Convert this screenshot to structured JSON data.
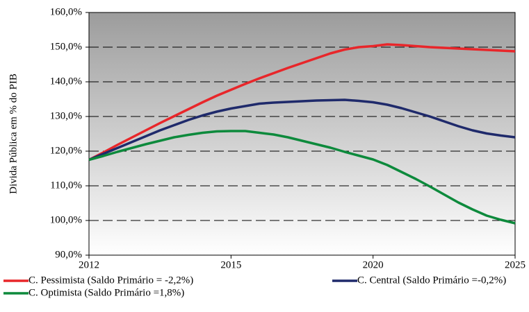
{
  "chart_data": {
    "type": "line",
    "y_label": "Divida Pública em % do PIB",
    "categories": [
      "2012",
      null,
      null,
      null,
      null,
      null,
      null,
      null,
      null,
      null,
      "2015",
      null,
      null,
      null,
      null,
      null,
      null,
      null,
      null,
      null,
      "2020",
      null,
      null,
      null,
      null,
      null,
      null,
      null,
      null,
      null,
      "2025"
    ],
    "series": [
      {
        "name": "C. Pessimista (Saldo Primário = -2,2%)",
        "color": "#e8262a",
        "values": [
          117.5,
          119.6,
          121.8,
          123.9,
          126,
          128.1,
          130.1,
          132.1,
          134.1,
          136,
          137.7,
          139.4,
          141,
          142.5,
          144,
          145.4,
          146.8,
          148.2,
          149.3,
          150,
          150.3,
          150.8,
          150.6,
          150.3,
          150,
          149.8,
          149.6,
          149.4,
          149.2,
          149,
          148.8
        ]
      },
      {
        "name": "C. Central (Saldo Primário =-0,2%)",
        "color": "#1f2a6b",
        "values": [
          117.5,
          119.2,
          120.9,
          122.6,
          124.3,
          126,
          127.5,
          129,
          130.3,
          131.4,
          132.3,
          133,
          133.7,
          134,
          134.2,
          134.4,
          134.6,
          134.7,
          134.8,
          134.5,
          134.1,
          133.4,
          132.4,
          131.2,
          130,
          128.6,
          127.2,
          126,
          125.1,
          124.5,
          124
        ]
      },
      {
        "name": "C. Optimista (Saldo Primário =1,8%)",
        "color": "#0d8a3c",
        "values": [
          117.5,
          118.6,
          119.8,
          120.9,
          122,
          123,
          124,
          124.7,
          125.3,
          125.7,
          125.8,
          125.8,
          125.3,
          124.8,
          124,
          123,
          122,
          121,
          119.8,
          118.7,
          117.6,
          116,
          114,
          112,
          109.8,
          107.5,
          105.2,
          103.2,
          101.4,
          100.2,
          99.2
        ]
      }
    ],
    "ylim": [
      90,
      160
    ],
    "yticks": [
      {
        "value": 90,
        "label": "90,0%"
      },
      {
        "value": 100,
        "label": "100,0%"
      },
      {
        "value": 110,
        "label": "110,0%"
      },
      {
        "value": 120,
        "label": "120,0%"
      },
      {
        "value": 130,
        "label": "130,0%"
      },
      {
        "value": 140,
        "label": "140,0%"
      },
      {
        "value": 150,
        "label": "150,0%"
      },
      {
        "value": 160,
        "label": "160,0%"
      }
    ],
    "grid": true
  }
}
